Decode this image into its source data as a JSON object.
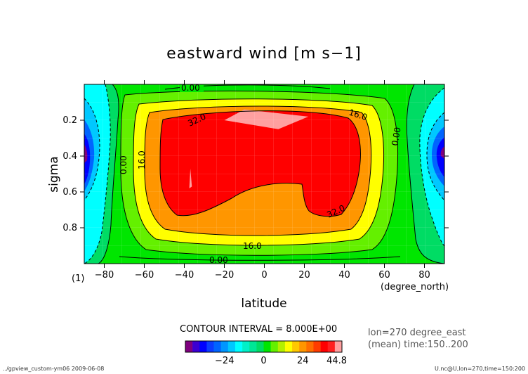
{
  "chart_data": {
    "type": "heatmap",
    "title": "eastward wind [m s−1]",
    "xlabel": "latitude",
    "xunit": "(degree_north)",
    "ylabel": "sigma",
    "panel_label": "(1)",
    "xlim": [
      -90,
      90
    ],
    "ylim": [
      1.0,
      0.0
    ],
    "xticks": [
      -80,
      -60,
      -40,
      -20,
      0,
      20,
      40,
      60,
      80
    ],
    "yticks": [
      0.2,
      0.4,
      0.6,
      0.8
    ],
    "contour_interval_text": "CONTOUR INTERVAL = 8.000E+00",
    "contour_levels": [
      {
        "label": "0.00",
        "value": 0
      },
      {
        "label": "16.0",
        "value": 16
      },
      {
        "label": "32.0",
        "value": 32
      }
    ],
    "colorbar": {
      "tick_labels": [
        "−24",
        "0",
        "24",
        "44.8"
      ],
      "tick_values": [
        -24,
        0,
        24,
        44.8
      ],
      "min": -48,
      "max": 48,
      "colors": [
        "#7f007f",
        "#3c00d2",
        "#0000ff",
        "#0a3cff",
        "#0064ff",
        "#0096ff",
        "#00c8ff",
        "#00ffff",
        "#00f0c8",
        "#00e696",
        "#00dc64",
        "#00e600",
        "#64f000",
        "#b4f000",
        "#ffff00",
        "#ffc800",
        "#ff9600",
        "#ff6e00",
        "#ff3c00",
        "#ff0000",
        "#ff2020",
        "#ffa0a0"
      ]
    },
    "info_lines": [
      "lon=270 degree_east",
      "(mean) time:150..200"
    ],
    "footer_left": "../gpview_custom-ym06  2009-06-08",
    "footer_right": "U.nc@U,lon=270,time=150:200",
    "regions": [
      {
        "level": 40,
        "polygon": [
          [
            -10,
            0.14
          ],
          [
            22,
            0.18
          ],
          [
            7,
            0.25
          ],
          [
            -20,
            0.2
          ]
        ]
      },
      {
        "level": 40,
        "polygon": [
          [
            -37,
            0.47
          ],
          [
            -37.5,
            0.58
          ],
          [
            -36.2,
            0.57
          ]
        ]
      }
    ]
  }
}
